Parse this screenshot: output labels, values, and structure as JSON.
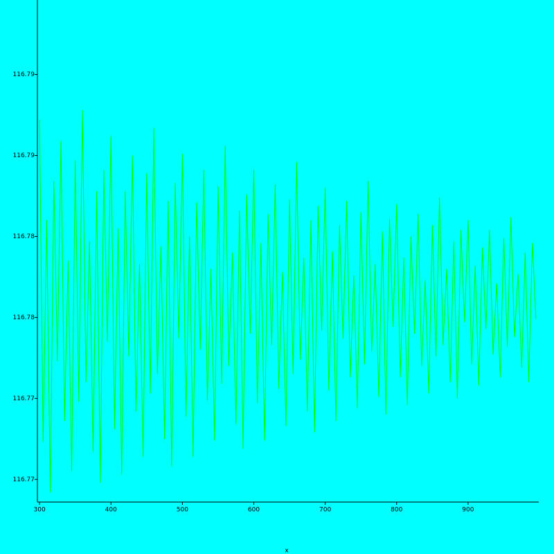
{
  "chart_data": {
    "type": "line",
    "x_label": "x",
    "x": [
      300,
      305,
      310,
      315,
      320,
      325,
      330,
      335,
      340,
      345,
      350,
      355,
      360,
      365,
      370,
      375,
      380,
      385,
      390,
      395,
      400,
      405,
      410,
      415,
      420,
      425,
      430,
      435,
      440,
      445,
      450,
      455,
      460,
      465,
      470,
      475,
      480,
      485,
      490,
      495,
      500,
      505,
      510,
      515,
      520,
      525,
      530,
      535,
      540,
      545,
      550,
      555,
      560,
      565,
      570,
      575,
      580,
      585,
      590,
      595,
      600,
      605,
      610,
      615,
      620,
      625,
      630,
      635,
      640,
      645,
      650,
      655,
      660,
      665,
      670,
      675,
      680,
      685,
      690,
      695,
      700,
      705,
      710,
      715,
      720,
      725,
      730,
      735,
      740,
      745,
      750,
      755,
      760,
      765,
      770,
      775,
      780,
      785,
      790,
      795,
      800,
      805,
      810,
      815,
      820,
      825,
      830,
      835,
      840,
      845,
      850,
      855,
      860,
      865,
      870,
      875,
      880,
      885,
      890,
      895,
      900,
      905,
      910,
      915,
      920,
      925,
      930,
      935,
      940,
      945,
      950,
      955,
      960,
      965,
      970,
      975,
      980,
      985,
      990,
      995
    ],
    "series": [
      {
        "color": "#00ff00",
        "values": [
          116.7922,
          116.7723,
          116.786,
          116.7692,
          116.7884,
          116.7773,
          116.7909,
          116.7736,
          116.7835,
          116.7705,
          116.7897,
          116.7748,
          116.7928,
          116.776,
          116.7847,
          116.7717,
          116.7878,
          116.7698,
          116.7891,
          116.7785,
          116.7912,
          116.7731,
          116.7855,
          116.7703,
          116.7878,
          116.7776,
          116.79,
          116.7742,
          116.7833,
          116.7714,
          116.7889,
          116.7753,
          116.7917,
          116.7765,
          116.7844,
          116.7725,
          116.7872,
          116.7708,
          116.7883,
          116.7787,
          116.7901,
          116.7739,
          116.785,
          116.7714,
          116.7871,
          116.778,
          116.7891,
          116.7749,
          116.783,
          116.7724,
          116.7881,
          116.7759,
          116.7906,
          116.777,
          116.784,
          116.7734,
          116.7866,
          116.7719,
          116.7876,
          116.779,
          116.7891,
          116.7747,
          116.7846,
          116.7724,
          116.7864,
          116.7783,
          116.7882,
          116.7756,
          116.7828,
          116.7733,
          116.7873,
          116.7765,
          116.7896,
          116.7774,
          116.7837,
          116.7742,
          116.786,
          116.7729,
          116.7869,
          116.7792,
          116.788,
          116.7755,
          116.7841,
          116.7736,
          116.7857,
          116.7787,
          116.7872,
          116.7763,
          116.7826,
          116.7744,
          116.7865,
          116.7771,
          116.7884,
          116.7779,
          116.7833,
          116.7751,
          116.7853,
          116.774,
          116.7861,
          116.7794,
          116.787,
          116.7763,
          116.7837,
          116.7746,
          116.785,
          116.779,
          116.7864,
          116.777,
          116.7823,
          116.7753,
          116.7857,
          116.7776,
          116.7874,
          116.7783,
          116.783,
          116.776,
          116.7847,
          116.775,
          116.7854,
          116.7797,
          116.786,
          116.7771,
          116.7832,
          116.7758,
          116.7843,
          116.7793,
          116.7854,
          116.7777,
          116.7821,
          116.7763,
          116.7849,
          116.7782,
          116.7862,
          116.7788,
          116.7827,
          116.7769,
          116.784,
          116.776,
          116.7846,
          116.7799
        ]
      }
    ],
    "xlim": [
      297,
      999
    ],
    "xticks": [
      300,
      400,
      500,
      600,
      700,
      800,
      900
    ],
    "ylim": [
      116.7686,
      116.7996
    ],
    "yticks": [
      {
        "value": 116.77,
        "label": "116.77"
      },
      {
        "value": 116.775,
        "label": "116.77"
      },
      {
        "value": 116.78,
        "label": "116.78"
      },
      {
        "value": 116.785,
        "label": "116.78"
      },
      {
        "value": 116.79,
        "label": "116.79"
      },
      {
        "value": 116.795,
        "label": "116.79"
      }
    ],
    "grid": false
  }
}
